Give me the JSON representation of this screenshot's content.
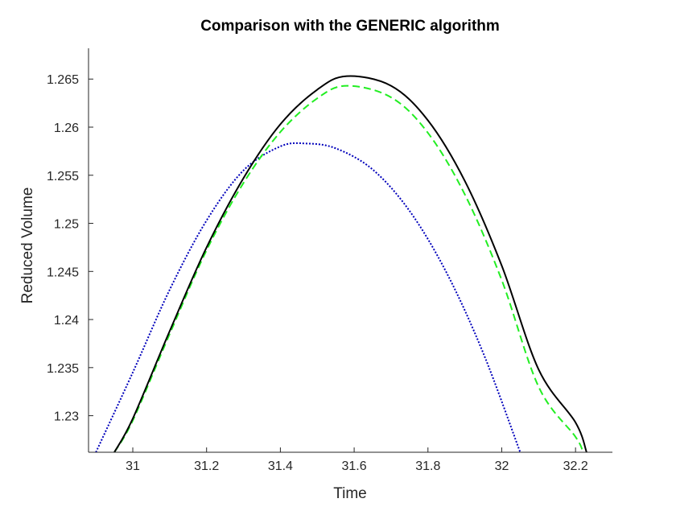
{
  "chart_data": {
    "type": "line",
    "title": "Comparison with the GENERIC algorithm",
    "xlabel": "Time",
    "ylabel": "Reduced Volume",
    "xlim": [
      30.88,
      32.3
    ],
    "ylim": [
      1.2262,
      1.2682
    ],
    "xticks": [
      31,
      31.2,
      31.4,
      31.6,
      31.8,
      32,
      32.2
    ],
    "xtick_labels": [
      "31",
      "31.2",
      "31.4",
      "31.6",
      "31.8",
      "32",
      "32.2"
    ],
    "yticks": [
      1.23,
      1.235,
      1.24,
      1.245,
      1.25,
      1.255,
      1.26,
      1.265
    ],
    "ytick_labels": [
      "1.23",
      "1.235",
      "1.24",
      "1.245",
      "1.25",
      "1.255",
      "1.26",
      "1.265"
    ],
    "grid": false,
    "legend": "none",
    "series": [
      {
        "color": "#000000",
        "style": "solid",
        "x": [
          30.95,
          31.0,
          31.1,
          31.2,
          31.3,
          31.4,
          31.5,
          31.58,
          31.7,
          31.8,
          31.9,
          32.0,
          32.1,
          32.2,
          32.23
        ],
        "values": [
          1.2262,
          1.2297,
          1.2388,
          1.2475,
          1.2547,
          1.2603,
          1.2639,
          1.2653,
          1.2643,
          1.2607,
          1.2544,
          1.2456,
          1.2348,
          1.2293,
          1.2262
        ]
      },
      {
        "color": "#22ee22",
        "style": "dashed",
        "x": [
          30.95,
          31.0,
          31.1,
          31.2,
          31.3,
          31.4,
          31.5,
          31.58,
          31.7,
          31.8,
          31.9,
          32.0,
          32.1,
          32.2,
          32.22
        ],
        "values": [
          1.2262,
          1.2295,
          1.2385,
          1.2472,
          1.2542,
          1.2595,
          1.263,
          1.2643,
          1.2631,
          1.2594,
          1.253,
          1.2441,
          1.233,
          1.2278,
          1.2262
        ]
      },
      {
        "color": "#0000bb",
        "style": "dotted",
        "x": [
          30.9,
          31.0,
          31.1,
          31.2,
          31.3,
          31.4,
          31.47,
          31.55,
          31.65,
          31.75,
          31.85,
          31.95,
          32.05
        ],
        "values": [
          1.2262,
          1.2345,
          1.2431,
          1.2503,
          1.2555,
          1.258,
          1.2583,
          1.2578,
          1.2556,
          1.2513,
          1.2449,
          1.2365,
          1.2262
        ]
      }
    ]
  }
}
